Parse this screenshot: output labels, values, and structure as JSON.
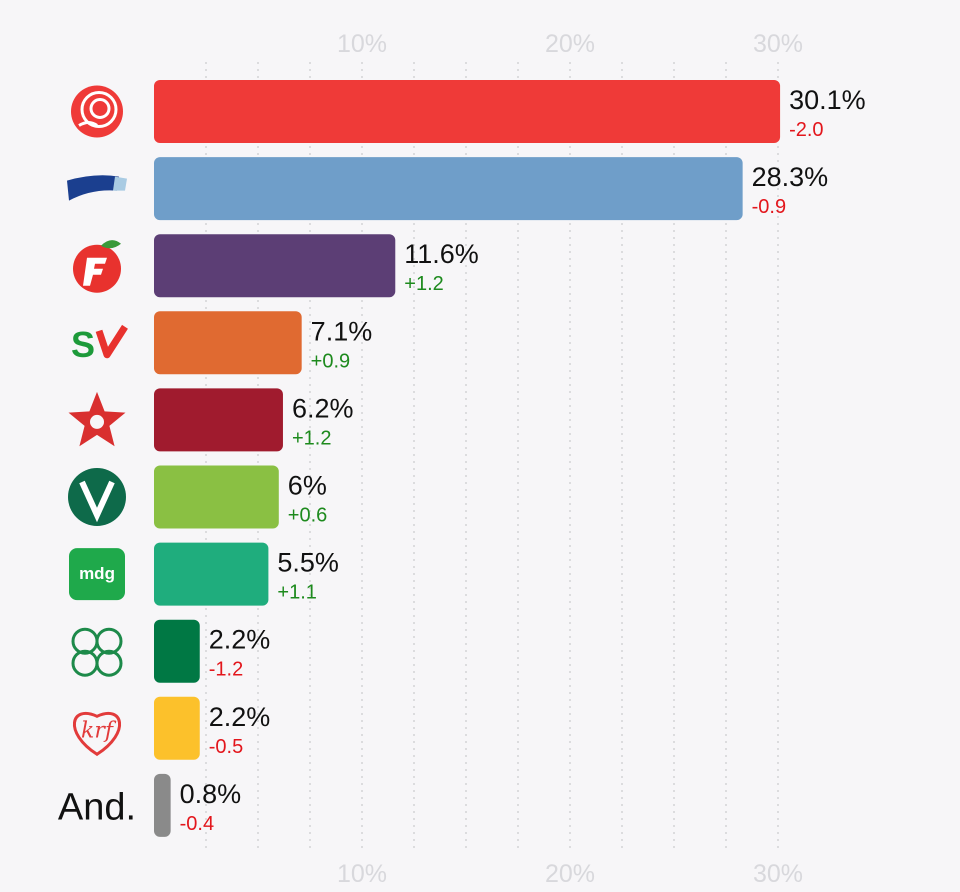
{
  "chart_data": {
    "type": "bar",
    "orientation": "horizontal",
    "x_ticks": [
      "10%",
      "20%",
      "30%"
    ],
    "xlim": [
      0,
      30
    ],
    "grid": true,
    "categories": [
      "rose-logo",
      "flag-logo",
      "apple-logo",
      "sv-logo",
      "star-logo",
      "v-logo",
      "mdg-logo",
      "clover-logo",
      "krf-logo",
      "And."
    ],
    "values": [
      30.1,
      28.3,
      11.6,
      7.1,
      6.2,
      6,
      5.5,
      2.2,
      2.2,
      0.8
    ],
    "value_labels": [
      "30.1%",
      "28.3%",
      "11.6%",
      "7.1%",
      "6.2%",
      "6%",
      "5.5%",
      "2.2%",
      "2.2%",
      "0.8%"
    ],
    "changes": [
      -2.0,
      -0.9,
      1.2,
      0.9,
      1.2,
      0.6,
      1.1,
      -1.2,
      -0.5,
      -0.4
    ],
    "change_labels": [
      "-2.0",
      "-0.9",
      "+1.2",
      "+0.9",
      "+1.2",
      "+0.6",
      "+1.1",
      "-1.2",
      "-0.5",
      "-0.4"
    ],
    "bar_colors": [
      "#ef3a38",
      "#6f9ec9",
      "#5c3e75",
      "#e06a31",
      "#a01b2e",
      "#8ac043",
      "#1fad7d",
      "#007844",
      "#fcc12b",
      "#8a8a8a"
    ],
    "other_label": "And.",
    "mdg_text": "mdg",
    "sv_text": "SV"
  },
  "colors": {
    "negative": "#e3161c",
    "positive": "#1d8a1d",
    "grid": "#dcdcde",
    "tick": "#d8d8dc",
    "background": "#f7f6f8"
  }
}
